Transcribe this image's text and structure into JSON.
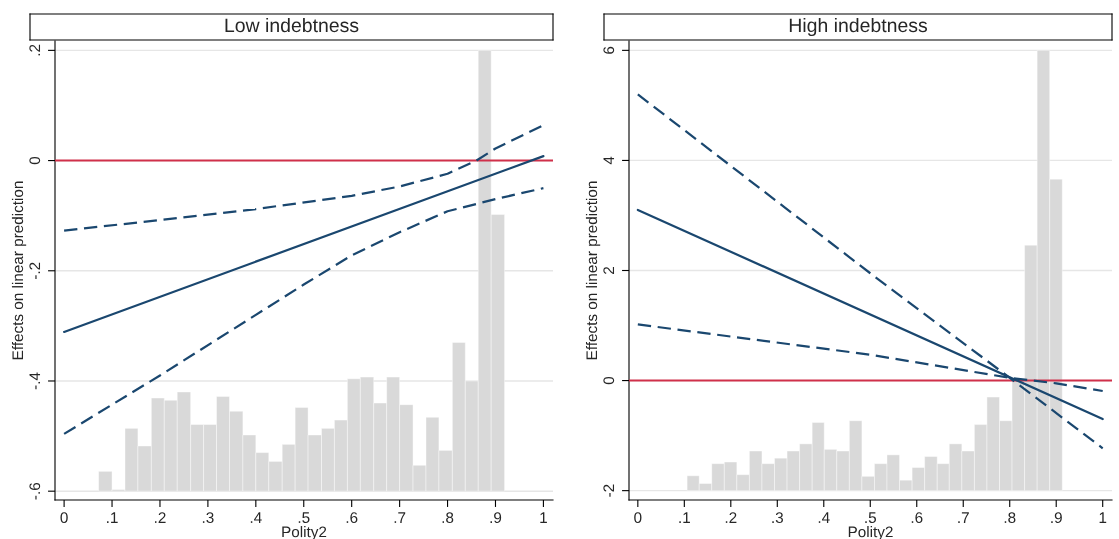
{
  "chart_data": [
    {
      "type": "line",
      "title": "Low indebtness",
      "xlabel": "Polity2",
      "ylabel": "Effects on linear prediction",
      "xlim": [
        -0.019,
        1.02
      ],
      "ylim": [
        -0.616,
        0.217
      ],
      "xticks": [
        0,
        {
          "value": 0.1,
          "label": ".1"
        },
        {
          "value": 0.2,
          "label": ".2"
        },
        {
          "value": 0.3,
          "label": ".3"
        },
        {
          "value": 0.4,
          "label": ".4"
        },
        {
          "value": 0.5,
          "label": ".5"
        },
        {
          "value": 0.6,
          "label": ".6"
        },
        {
          "value": 0.7,
          "label": ".7"
        },
        {
          "value": 0.8,
          "label": ".8"
        },
        {
          "value": 0.9,
          "label": ".9"
        },
        1
      ],
      "yticks": [
        {
          "value": -0.6,
          "label": "-.6"
        },
        {
          "value": -0.4,
          "label": "-.4"
        },
        {
          "value": -0.2,
          "label": "-.2"
        },
        0,
        {
          "value": 0.2,
          "label": ".2"
        }
      ],
      "grid": "y",
      "ref_lines": [
        {
          "axis": "y",
          "value": 0,
          "color": "#d0304a"
        }
      ],
      "series": [
        {
          "type": "histogram",
          "color": "#d9d9d9",
          "bins": [
            0.072,
            0.1,
            0.127,
            0.154,
            0.182,
            0.209,
            0.236,
            0.264,
            0.291,
            0.318,
            0.345,
            0.373,
            0.4,
            0.427,
            0.455,
            0.482,
            0.509,
            0.537,
            0.564,
            0.591,
            0.618,
            0.646,
            0.673,
            0.7,
            0.728,
            0.755,
            0.782,
            0.81,
            0.837,
            0.864,
            0.891,
            0.919
          ],
          "values": [
            0.036,
            0.003,
            0.114,
            0.082,
            0.169,
            0.165,
            0.18,
            0.121,
            0.121,
            0.172,
            0.145,
            0.102,
            0.07,
            0.054,
            0.085,
            0.152,
            0.102,
            0.114,
            0.129,
            0.204,
            0.207,
            0.16,
            0.207,
            0.157,
            0.047,
            0.134,
            0.074,
            0.27,
            0.2,
            0.8,
            0.502
          ],
          "base": [
            -0.6,
            -0.6,
            -0.6,
            -0.6,
            -0.6,
            -0.6,
            -0.6,
            -0.6,
            -0.6,
            -0.6,
            -0.6,
            -0.6,
            -0.6,
            -0.6,
            -0.6,
            -0.6,
            -0.6,
            -0.6,
            -0.6,
            -0.6,
            -0.6,
            -0.6,
            -0.6,
            -0.6,
            -0.6,
            -0.6,
            -0.6,
            -0.6,
            -0.6,
            -0.6,
            -0.6
          ]
        },
        {
          "color": "#1a476f",
          "line_style": "solid",
          "x": [
            0,
            1
          ],
          "values": [
            -0.311,
            0.008
          ]
        },
        {
          "color": "#1a476f",
          "line_style": "dashed",
          "x": [
            0,
            0.2,
            0.4,
            0.6,
            0.7,
            0.8,
            0.86,
            0.9,
            1
          ],
          "values": [
            -0.127,
            -0.108,
            -0.088,
            -0.064,
            -0.047,
            -0.024,
            0.0,
            0.022,
            0.064
          ]
        },
        {
          "color": "#1a476f",
          "line_style": "dashed",
          "x": [
            0,
            0.2,
            0.4,
            0.5,
            0.6,
            0.7,
            0.8,
            0.9,
            1
          ],
          "values": [
            -0.496,
            -0.39,
            -0.28,
            -0.225,
            -0.172,
            -0.13,
            -0.092,
            -0.07,
            -0.05
          ]
        }
      ]
    },
    {
      "type": "line",
      "title": "High indebtness",
      "xlabel": "Polity2",
      "ylabel": "Effects on linear prediction",
      "xlim": [
        -0.019,
        1.02
      ],
      "ylim": [
        -2.17,
        6.17
      ],
      "xticks": [
        0,
        {
          "value": 0.1,
          "label": ".1"
        },
        {
          "value": 0.2,
          "label": ".2"
        },
        {
          "value": 0.3,
          "label": ".3"
        },
        {
          "value": 0.4,
          "label": ".4"
        },
        {
          "value": 0.5,
          "label": ".5"
        },
        {
          "value": 0.6,
          "label": ".6"
        },
        {
          "value": 0.7,
          "label": ".7"
        },
        {
          "value": 0.8,
          "label": ".8"
        },
        {
          "value": 0.9,
          "label": ".9"
        },
        1
      ],
      "yticks": [
        -2,
        0,
        2,
        4,
        6
      ],
      "grid": "y",
      "ref_lines": [
        {
          "axis": "y",
          "value": 0,
          "color": "#d0304a"
        }
      ],
      "series": [
        {
          "type": "histogram",
          "color": "#d9d9d9",
          "bins": [
            0.106,
            0.132,
            0.159,
            0.186,
            0.213,
            0.24,
            0.267,
            0.294,
            0.321,
            0.348,
            0.375,
            0.401,
            0.428,
            0.455,
            0.482,
            0.509,
            0.536,
            0.563,
            0.59,
            0.617,
            0.644,
            0.67,
            0.697,
            0.724,
            0.751,
            0.778,
            0.805,
            0.832,
            0.859,
            0.886,
            0.913
          ],
          "values": [
            0.27,
            0.13,
            0.49,
            0.52,
            0.29,
            0.72,
            0.49,
            0.59,
            0.72,
            0.85,
            1.24,
            0.75,
            0.72,
            1.27,
            0.26,
            0.49,
            0.65,
            0.19,
            0.42,
            0.62,
            0.49,
            0.85,
            0.72,
            1.2,
            1.7,
            1.27,
            2.0,
            4.46,
            8.0,
            5.66
          ],
          "base": [
            -2,
            -2,
            -2,
            -2,
            -2,
            -2,
            -2,
            -2,
            -2,
            -2,
            -2,
            -2,
            -2,
            -2,
            -2,
            -2,
            -2,
            -2,
            -2,
            -2,
            -2,
            -2,
            -2,
            -2,
            -2,
            -2,
            -2,
            -2,
            -2,
            -2
          ]
        },
        {
          "color": "#1a476f",
          "line_style": "solid",
          "x": [
            0,
            1
          ],
          "values": [
            3.1,
            -0.7
          ]
        },
        {
          "color": "#1a476f",
          "line_style": "dashed",
          "x": [
            0,
            0.5,
            0.8,
            1
          ],
          "values": [
            5.2,
            1.95,
            0.05,
            -1.23
          ]
        },
        {
          "color": "#1a476f",
          "line_style": "dashed",
          "x": [
            0,
            0.5,
            0.8,
            0.9,
            1
          ],
          "values": [
            1.02,
            0.47,
            0.05,
            -0.05,
            -0.19
          ]
        }
      ]
    }
  ]
}
